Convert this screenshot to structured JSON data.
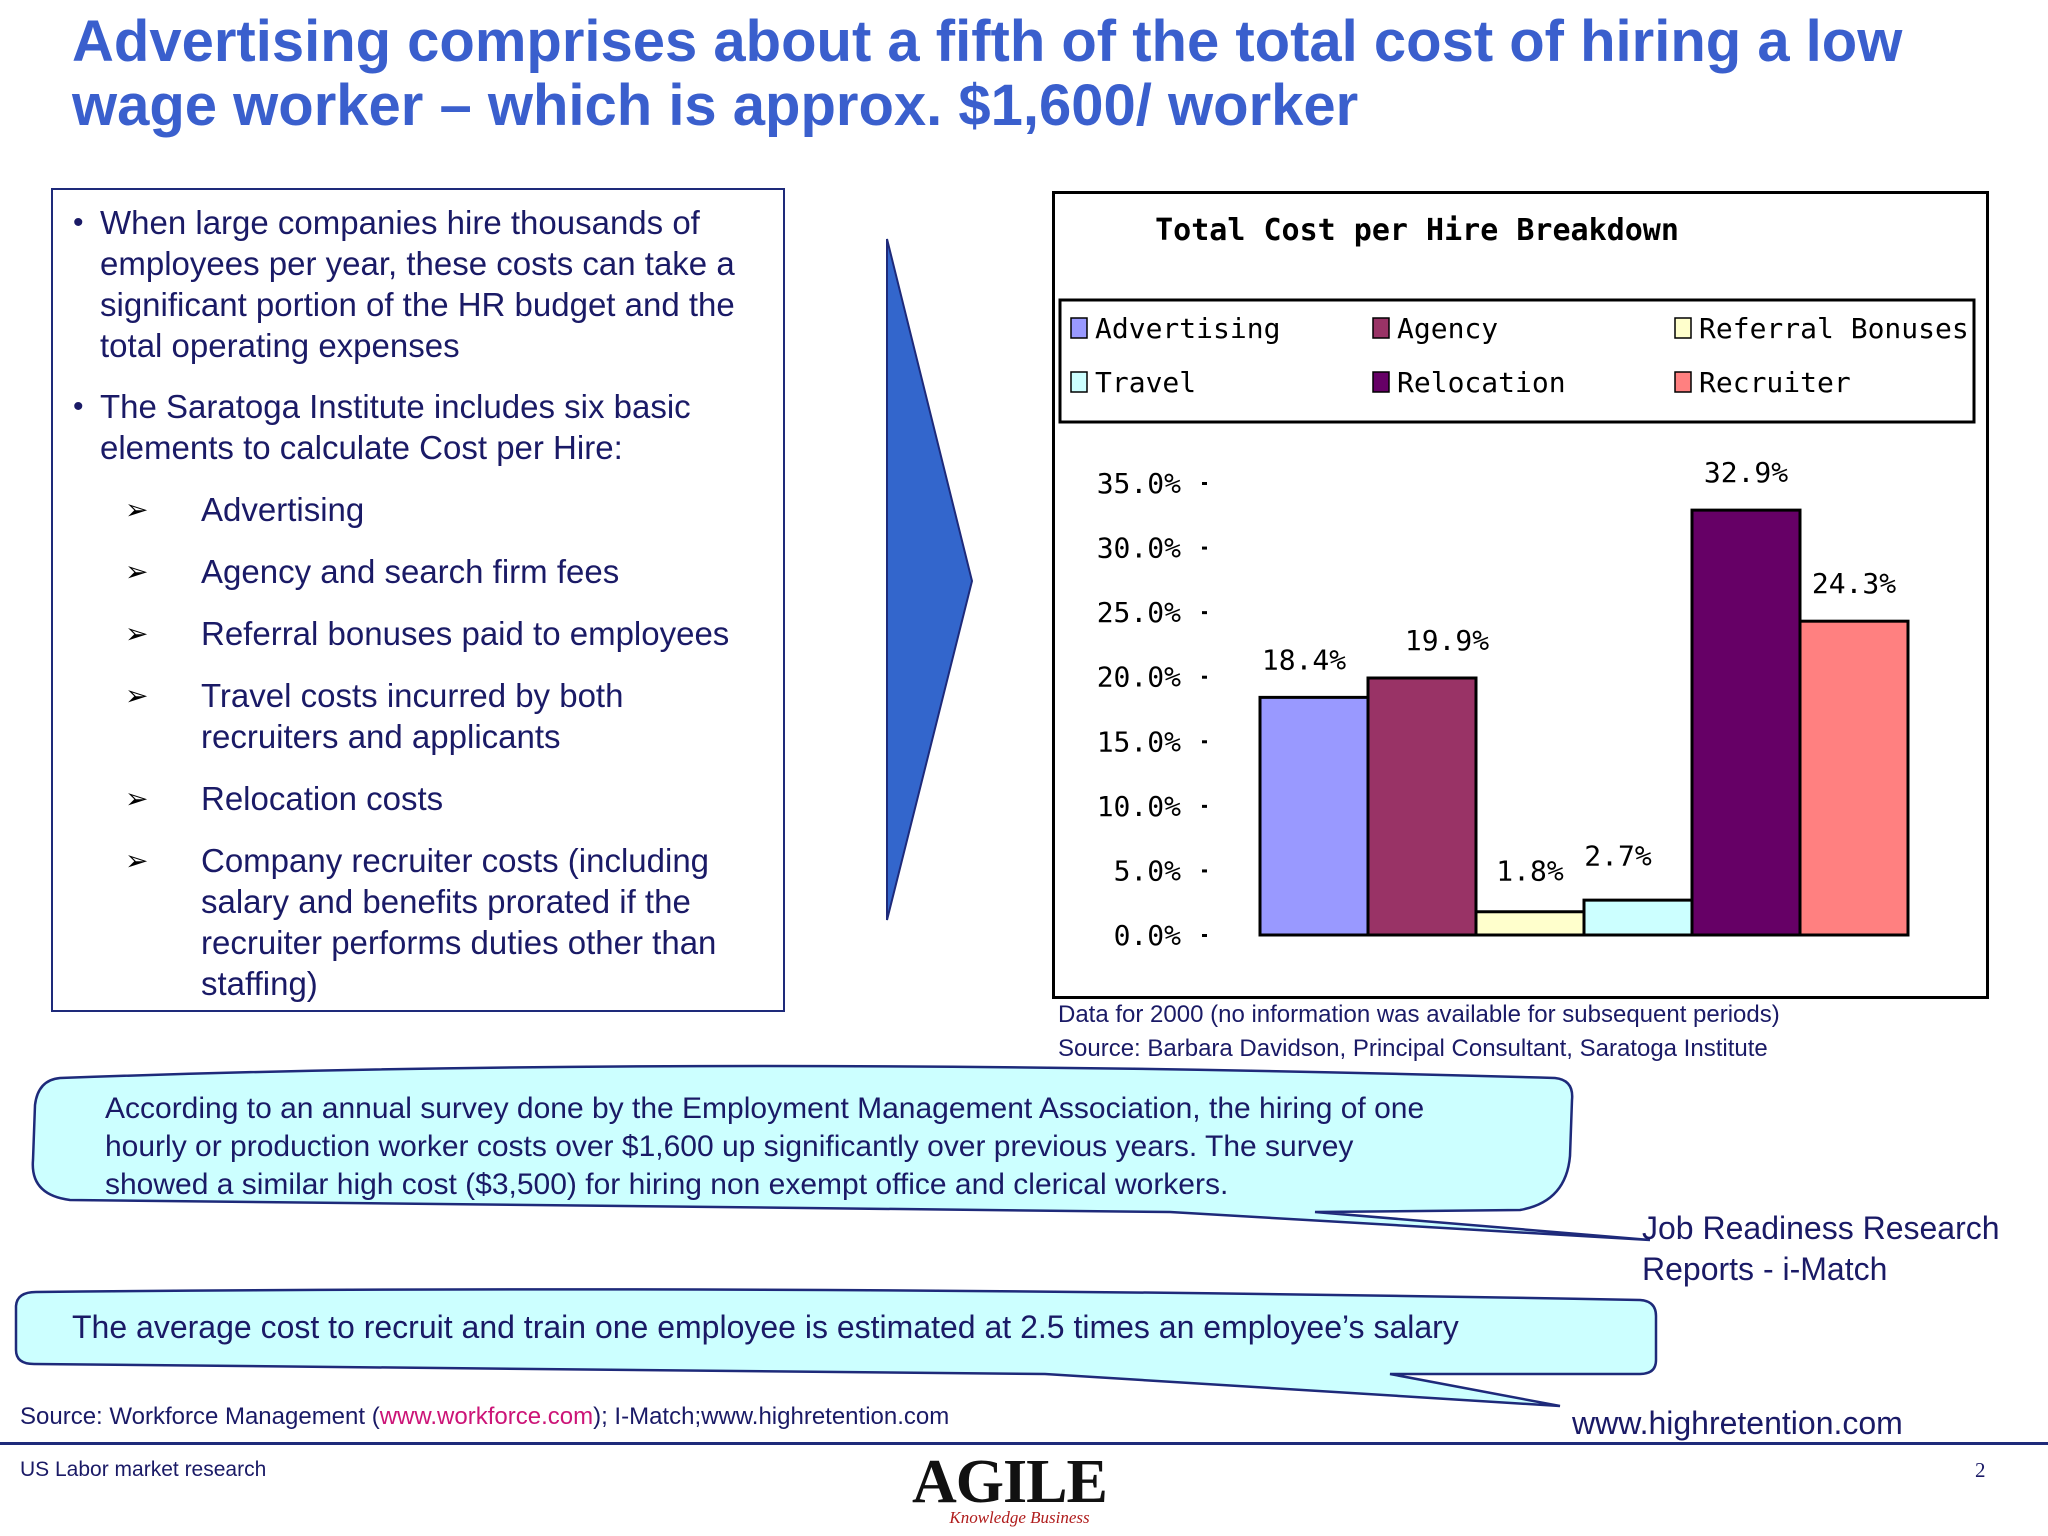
{
  "title": "Advertising comprises about a fifth of the total cost of hiring a low wage worker – which is approx. $1,600/ worker",
  "bullets": [
    "When large companies hire thousands of employees per year, these costs can take a significant portion of the HR budget and the total operating expenses",
    "The Saratoga Institute includes six basic elements to calculate Cost per Hire:"
  ],
  "sub_items": [
    "Advertising",
    "Agency and search firm fees",
    "Referral bonuses paid to employees",
    "Travel costs incurred by both recruiters and applicants",
    "Relocation costs",
    "Company recruiter costs (including salary and benefits prorated if the recruiter performs duties other than staffing)"
  ],
  "bullet_glyph": "•",
  "sub_glyph": "➢",
  "chart_data": {
    "type": "bar",
    "title": "Total Cost per Hire Breakdown",
    "categories": [
      "Advertising",
      "Agency",
      "Referral Bonuses",
      "Travel",
      "Relocation",
      "Recruiter"
    ],
    "values": [
      18.4,
      19.9,
      1.8,
      2.7,
      32.9,
      24.3
    ],
    "data_labels": [
      "18.4%",
      "19.9%",
      "1.8%",
      "2.7%",
      "32.9%",
      "24.3%"
    ],
    "colors": [
      "#9999ff",
      "#993366",
      "#ffffcc",
      "#ccffff",
      "#660066",
      "#ff8080"
    ],
    "legend": [
      "Advertising",
      "Agency",
      "Referral Bonuses",
      "Travel",
      "Relocation",
      "Recruiter"
    ],
    "legend_position": "top",
    "ylim": [
      0,
      35
    ],
    "yticks": [
      "35.0%",
      "30.0%",
      "25.0%",
      "20.0%",
      "15.0%",
      "10.0%",
      "5.0%",
      "0.0%"
    ],
    "xlabel": "",
    "ylabel": "",
    "grid": false
  },
  "chart_notes": [
    "Data for 2000 (no information was available for subsequent periods)",
    "Source: Barbara Davidson, Principal Consultant, Saratoga Institute"
  ],
  "callout1": {
    "lines": [
      "According to  an annual survey done by the Employment Management Association, the hiring of one",
      "hourly or production worker costs over $1,600 up significantly over previous years. The survey",
      "showed a similar high cost ($3,500) for hiring non exempt office and clerical workers."
    ],
    "attribution": [
      "Job Readiness Research",
      "Reports - i-Match"
    ]
  },
  "callout2": {
    "text": "The average cost to recruit and train one employee is estimated at 2.5 times an employee’s salary",
    "attribution": "www.highretention.com"
  },
  "source": {
    "prefix": "Source: Workforce Management (",
    "link": "www.workforce.com",
    "suffix": "); I-Match;www.highretention.com"
  },
  "footer": {
    "left": "US Labor market research",
    "page": "2",
    "logo": "AGILE",
    "logo_tag": "Knowledge Business"
  },
  "colors": {
    "title": "#3a5fcd",
    "arrow": "#3366cc",
    "callout_fill": "#ccffff",
    "link": "#cc1477"
  }
}
